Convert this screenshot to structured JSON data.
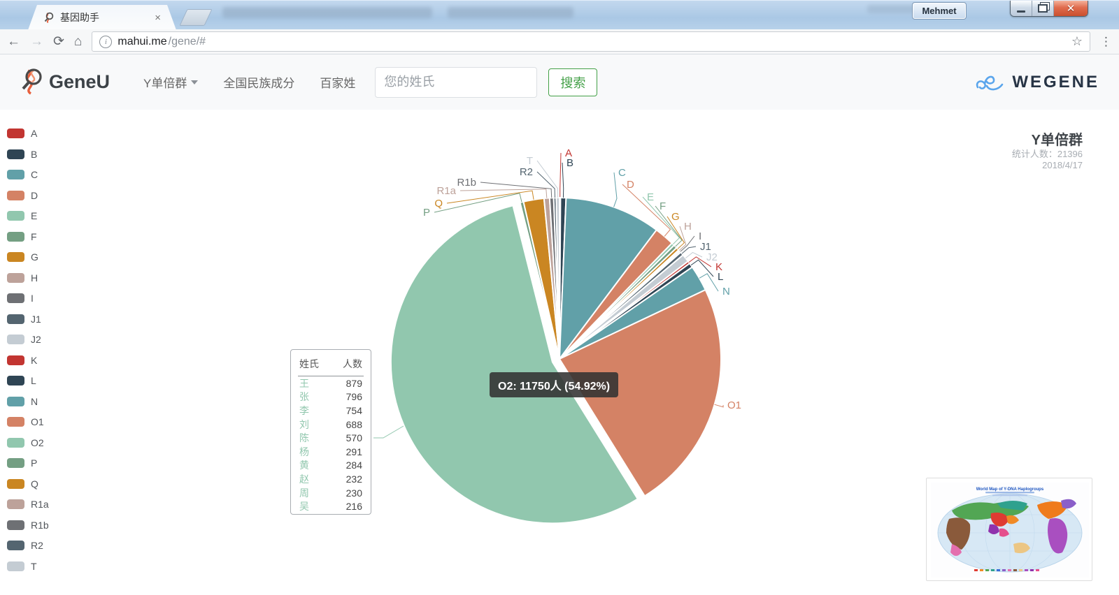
{
  "browser": {
    "tab_title": "基因助手",
    "url_host": "mahui.me",
    "url_path": "/gene/#",
    "user_button": "Mehmet"
  },
  "header": {
    "logo_text": "GeneU",
    "nav": [
      {
        "label": "Y单倍群",
        "has_dropdown": true
      },
      {
        "label": "全国民族成分",
        "has_dropdown": false
      },
      {
        "label": "百家姓",
        "has_dropdown": false
      }
    ],
    "search_placeholder": "您的姓氏",
    "search_button": "搜索",
    "brand": "WEGENE"
  },
  "chart": {
    "title": "Y单倍群",
    "subtitle_count": "统计人数：21396",
    "subtitle_date": "2018/4/17",
    "tooltip": "O2: 11750人 (54.92%)"
  },
  "surname_table": {
    "headers": [
      "姓氏",
      "人数"
    ],
    "rows": [
      [
        "王",
        879
      ],
      [
        "张",
        796
      ],
      [
        "李",
        754
      ],
      [
        "刘",
        688
      ],
      [
        "陈",
        570
      ],
      [
        "杨",
        291
      ],
      [
        "黄",
        284
      ],
      [
        "赵",
        232
      ],
      [
        "周",
        230
      ],
      [
        "吴",
        216
      ]
    ]
  },
  "map_thumbnail": {
    "title": "World Map of Y-DNA Haplogroups"
  },
  "chart_data": {
    "type": "pie",
    "title": "Y单倍群",
    "total": 21396,
    "date": "2018/4/17",
    "unit": "人",
    "selected": "O2",
    "tooltip": {
      "name": "O2",
      "value": 11750,
      "percent": 54.92
    },
    "legend_position": "left",
    "series": [
      {
        "name": "A",
        "value": 21,
        "color": "#c23531"
      },
      {
        "name": "B",
        "value": 118,
        "color": "#2f4554"
      },
      {
        "name": "C",
        "value": 2055,
        "color": "#61a0a8"
      },
      {
        "name": "D",
        "value": 428,
        "color": "#d48265"
      },
      {
        "name": "E",
        "value": 64,
        "color": "#91c7ae"
      },
      {
        "name": "F",
        "value": 75,
        "color": "#749f83"
      },
      {
        "name": "G",
        "value": 64,
        "color": "#ca8622"
      },
      {
        "name": "H",
        "value": 32,
        "color": "#bda29a"
      },
      {
        "name": "I",
        "value": 32,
        "color": "#6e7074"
      },
      {
        "name": "J1",
        "value": 75,
        "color": "#546570"
      },
      {
        "name": "J2",
        "value": 171,
        "color": "#c4ccd3"
      },
      {
        "name": "K",
        "value": 54,
        "color": "#c23531"
      },
      {
        "name": "L",
        "value": 96,
        "color": "#2f4554"
      },
      {
        "name": "N",
        "value": 556,
        "color": "#61a0a8"
      },
      {
        "name": "O1",
        "value": 4964,
        "color": "#d48265"
      },
      {
        "name": "O2",
        "value": 11750,
        "color": "#91c7ae"
      },
      {
        "name": "P",
        "value": 75,
        "color": "#749f83"
      },
      {
        "name": "Q",
        "value": 439,
        "color": "#ca8622"
      },
      {
        "name": "R1a",
        "value": 118,
        "color": "#bda29a"
      },
      {
        "name": "R1b",
        "value": 86,
        "color": "#6e7074"
      },
      {
        "name": "R2",
        "value": 54,
        "color": "#546570"
      },
      {
        "name": "T",
        "value": 69,
        "color": "#c4ccd3"
      }
    ]
  }
}
